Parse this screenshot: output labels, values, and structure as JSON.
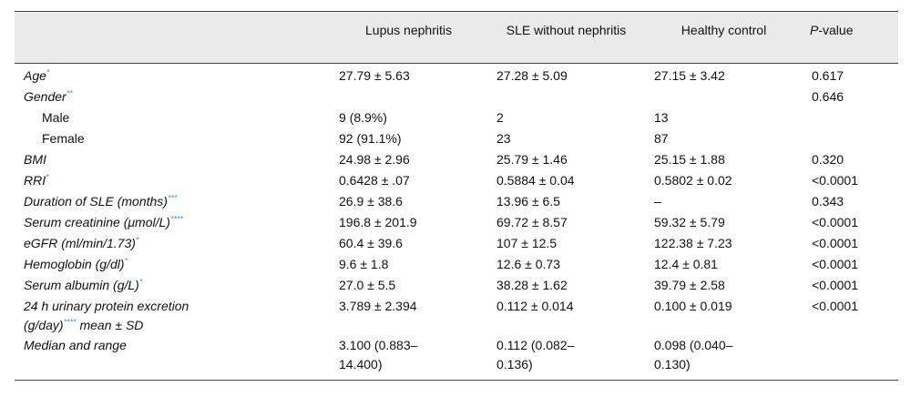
{
  "header": {
    "col0": "",
    "col1": "Lupus nephritis",
    "col2": "SLE without nephritis",
    "col3": "Healthy control",
    "col4_italic": "P",
    "col4_rest": "-value"
  },
  "rows": [
    {
      "label": "Age",
      "mark": "*",
      "italic": true,
      "ln": "27.79 ± 5.63",
      "sle": "27.28 ± 5.09",
      "hc": "27.15 ± 3.42",
      "p": "0.617"
    },
    {
      "label": "Gender",
      "mark": "**",
      "italic": true,
      "ln": "",
      "sle": "",
      "hc": "",
      "p": "0.646"
    },
    {
      "label": "Male",
      "mark": "",
      "italic": false,
      "ln": "9 (8.9%)",
      "sle": "2",
      "hc": "13",
      "p": ""
    },
    {
      "label": "Female",
      "mark": "",
      "italic": false,
      "ln": "92 (91.1%)",
      "sle": "23",
      "hc": "87",
      "p": ""
    },
    {
      "label": "BMI",
      "mark": "",
      "italic": true,
      "ln": "24.98 ± 2.96",
      "sle": "25.79 ± 1.46",
      "hc": "25.15 ± 1.88",
      "p": "0.320"
    },
    {
      "label": "RRI",
      "mark": "*",
      "italic": true,
      "ln": "0.6428 ± .07",
      "sle": "0.5884 ± 0.04",
      "hc": "0.5802 ± 0.02",
      "p": "<0.0001"
    },
    {
      "label": "Duration of SLE (months)",
      "mark": "***",
      "italic": true,
      "ln": "26.9 ± 38.6",
      "sle": "13.96 ± 6.5",
      "hc": "–",
      "p": "0.343"
    },
    {
      "label": "Serum creatinine (μmol/L)",
      "mark": "****",
      "italic": true,
      "ln": "196.8 ± 201.9",
      "sle": "69.72 ± 8.57",
      "hc": "59.32 ± 5.79",
      "p": "<0.0001"
    },
    {
      "label": "eGFR (ml/min/1.73)",
      "mark": "*",
      "italic": true,
      "ln": "60.4 ± 39.6",
      "sle": "107 ± 12.5",
      "hc": "122.38 ± 7.23",
      "p": "<0.0001"
    },
    {
      "label": "Hemoglobin (g/dl)",
      "mark": "*",
      "italic": true,
      "ln": "9.6 ± 1.8",
      "sle": "12.6 ± 0.73",
      "hc": "12.4 ± 0.81",
      "p": "<0.0001"
    },
    {
      "label": "Serum albumin (g/L)",
      "mark": "*",
      "italic": true,
      "ln": "27.0 ± 5.5",
      "sle": "38.28 ± 1.62",
      "hc": "39.79 ± 2.58",
      "p": "<0.0001"
    }
  ],
  "urinary": {
    "line1": "24 h urinary protein excretion",
    "line2a": "(g/day)",
    "mark": "****",
    "line2b": "mean ± SD",
    "ln": "3.789 ± 2.394",
    "sle": "0.112 ± 0.014",
    "hc": "0.100 ± 0.019",
    "p": "<0.0001"
  },
  "median": {
    "label": "Median and range",
    "ln_a": "3.100 (0.883–",
    "ln_b": "14.400)",
    "sle_a": "0.112 (0.082–",
    "sle_b": "0.136)",
    "hc_a": "0.098 (0.040–",
    "hc_b": "0.130)",
    "p": ""
  }
}
